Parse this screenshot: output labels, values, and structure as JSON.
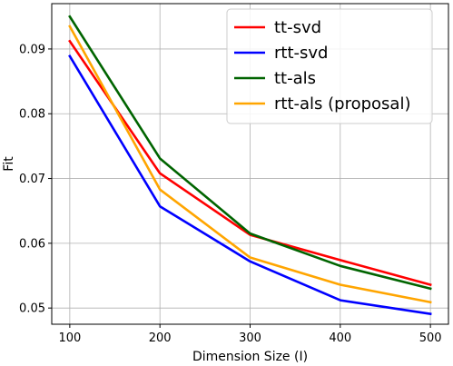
{
  "chart_data": {
    "type": "line",
    "xlabel": "Dimension Size (I)",
    "ylabel": "Fit",
    "x": [
      100,
      200,
      300,
      400,
      500
    ],
    "xticks": [
      "100",
      "200",
      "300",
      "400",
      "500"
    ],
    "yticks": [
      "0.05",
      "0.06",
      "0.07",
      "0.08",
      "0.09"
    ],
    "xlim": [
      80,
      520
    ],
    "ylim": [
      0.0475,
      0.097
    ],
    "grid": true,
    "legend_position": "top-right",
    "series": [
      {
        "name": "tt-svd",
        "color": "#ff0000",
        "values": [
          0.0912,
          0.0708,
          0.0613,
          0.0574,
          0.0536
        ]
      },
      {
        "name": "rtt-svd",
        "color": "#0000ff",
        "values": [
          0.0889,
          0.0657,
          0.0572,
          0.0512,
          0.0491
        ]
      },
      {
        "name": "tt-als",
        "color": "#006400",
        "values": [
          0.095,
          0.0731,
          0.0615,
          0.0565,
          0.053
        ]
      },
      {
        "name": "rtt-als (proposal)",
        "color": "#ffa500",
        "values": [
          0.0935,
          0.0683,
          0.0578,
          0.0536,
          0.0509
        ]
      }
    ]
  }
}
